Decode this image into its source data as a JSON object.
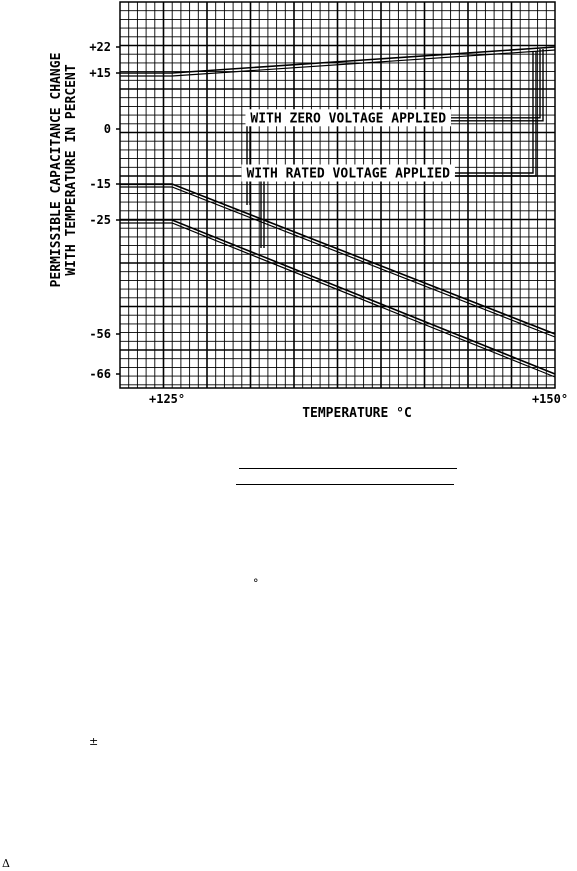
{
  "chart_data": {
    "type": "line",
    "xlabel": "TEMPERATURE °C",
    "ylabel_lines": [
      "PERMISSIBLE CAPACITANCE CHANGE",
      "WITH TEMPERATURE IN PERCENT"
    ],
    "x_ticks": [
      {
        "value": 125,
        "label": "+125°"
      },
      {
        "value": 150,
        "label": "+150°"
      }
    ],
    "y_ticks": [
      {
        "value": 22,
        "label": "+22"
      },
      {
        "value": 15,
        "label": "+15"
      },
      {
        "value": 0,
        "label": "0"
      },
      {
        "value": -15,
        "label": "-15"
      },
      {
        "value": -25,
        "label": "-25"
      },
      {
        "value": -56,
        "label": "-56"
      },
      {
        "value": -66,
        "label": "-66"
      }
    ],
    "series": [
      {
        "values_x": [
          121.6,
          125,
          150
        ],
        "values_y": [
          15,
          15,
          22
        ]
      },
      {
        "values_x": [
          121.6,
          125,
          150
        ],
        "values_y": [
          -15,
          -15,
          -56
        ]
      },
      {
        "values_x": [
          121.6,
          125,
          150
        ],
        "values_y": [
          -25,
          -25,
          -66
        ]
      }
    ],
    "annotations": [
      {
        "text": "WITH ZERO VOLTAGE APPLIED",
        "x": 136.5,
        "y": 3
      },
      {
        "text": "WITH RATED VOLTAGE APPLIED",
        "x": 136.5,
        "y": -12
      }
    ],
    "grid": true
  },
  "below": {
    "degree_glyph": "°",
    "plusminus_glyph": "±",
    "delta_glyph": "Δ"
  }
}
